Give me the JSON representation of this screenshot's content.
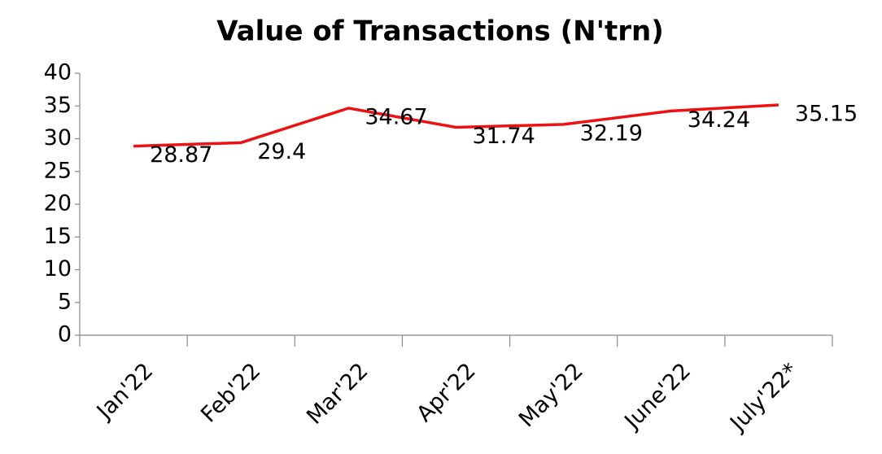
{
  "chart_data": {
    "type": "line",
    "title": "Value of Transactions (N'trn)",
    "categories": [
      "Jan'22",
      "Feb'22",
      "Mar'22",
      "Apr'22",
      "May'22",
      "June'22",
      "July'22*"
    ],
    "series": [
      {
        "name": "Value of Transactions",
        "color": "#ee1111",
        "values": [
          28.87,
          29.4,
          34.67,
          31.74,
          32.19,
          34.24,
          35.15
        ]
      }
    ],
    "ylim": [
      0,
      40
    ],
    "yticks": [
      0,
      5,
      10,
      15,
      20,
      25,
      30,
      35,
      40
    ]
  }
}
